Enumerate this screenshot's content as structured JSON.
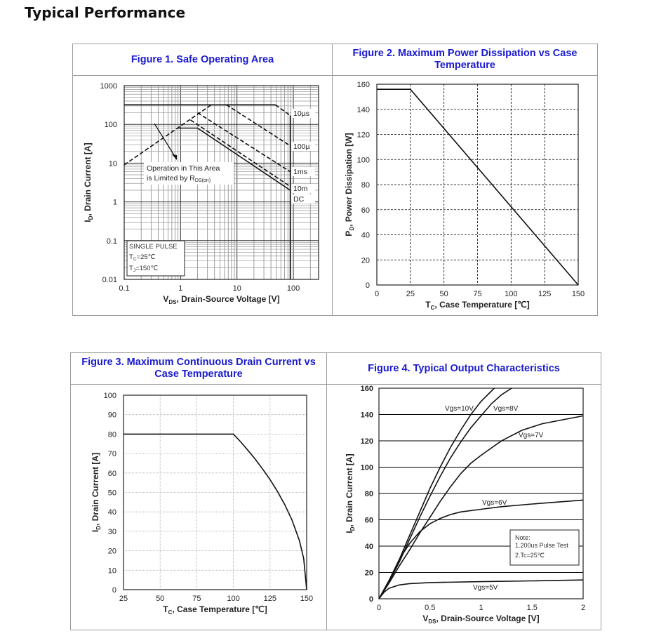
{
  "page_title": "Typical Performance",
  "chart_data": [
    {
      "type": "line",
      "title": "Figure 1. Safe Operating Area",
      "xscale": "log",
      "yscale": "log",
      "xlim": [
        0.1,
        280
      ],
      "ylim": [
        0.01,
        1000
      ],
      "grid": true,
      "xticks": [
        "0.1",
        "1",
        "10",
        "100"
      ],
      "yticks": [
        "0.01",
        "0.1",
        "1",
        "10",
        "100",
        "1000"
      ],
      "xlabel": {
        "pre": "V",
        "sub": "DS",
        "post": ", Drain-Source Voltage [V]"
      },
      "ylabel": {
        "pre": "I",
        "sub": "D",
        "post": ", Drain Current [A]"
      },
      "series": [
        {
          "style": "dashed",
          "points": [
            [
              0.1,
              9
            ],
            [
              3.5,
              320
            ]
          ]
        },
        {
          "style": "solid",
          "points": [
            [
              0.1,
              320
            ],
            [
              48,
              320
            ]
          ]
        },
        {
          "name": "10µs",
          "style": "dashed",
          "points": [
            [
              48,
              320
            ],
            [
              88,
              170
            ]
          ]
        },
        {
          "style": "solid",
          "points": [
            [
              88,
              0.01
            ],
            [
              88,
              170
            ]
          ]
        },
        {
          "name": "100µ",
          "style": "dashed",
          "points": [
            [
              6.5,
              320
            ],
            [
              88,
              28
            ]
          ]
        },
        {
          "name": "1ms",
          "style": "dashed",
          "points": [
            [
              2,
              200
            ],
            [
              88,
              6
            ]
          ]
        },
        {
          "name": "10m",
          "style": "dashed",
          "points": [
            [
              1.5,
              130
            ],
            [
              88,
              2.5
            ]
          ]
        },
        {
          "name": "DC",
          "style": "solid",
          "points": [
            [
              0.9,
              80
            ],
            [
              2,
              80
            ],
            [
              88,
              2
            ]
          ]
        }
      ],
      "annotation": {
        "line1": "Operation in This Area",
        "line2_pre": "is Limited by R",
        "line2_sub": "DS(on)"
      },
      "conditions": {
        "line1": "SINGLE PULSE",
        "tc_pre": "T",
        "tc_sub": "C",
        "tc_post": "=25℃",
        "tj_pre": "T",
        "tj_sub": "J",
        "tj_post": "=150℃"
      }
    },
    {
      "type": "line",
      "title": "Figure 2. Maximum Power Dissipation vs Case Temperature",
      "xlim": [
        0,
        150
      ],
      "ylim": [
        0,
        160
      ],
      "grid": true,
      "xticks": [
        "0",
        "25",
        "50",
        "75",
        "100",
        "125",
        "150"
      ],
      "yticks": [
        "0",
        "20",
        "40",
        "60",
        "80",
        "100",
        "120",
        "140",
        "160"
      ],
      "xlabel": {
        "pre": "T",
        "sub": "C",
        "post": ", Case Temperature [℃]"
      },
      "ylabel": {
        "pre": "P",
        "sub": "D",
        "post": ", Power Dissipation [W]"
      },
      "series": [
        {
          "style": "solid",
          "points": [
            [
              0,
              156
            ],
            [
              25,
              156
            ],
            [
              150,
              0
            ]
          ]
        }
      ]
    },
    {
      "type": "line",
      "title": "Figure 3. Maximum Continuous Drain Current vs Case Temperature",
      "xlim": [
        25,
        150
      ],
      "ylim": [
        0,
        100
      ],
      "grid": true,
      "xticks": [
        "25",
        "50",
        "75",
        "100",
        "125",
        "150"
      ],
      "yticks": [
        "0",
        "10",
        "20",
        "30",
        "40",
        "50",
        "60",
        "70",
        "80",
        "90",
        "100"
      ],
      "xlabel": {
        "pre": "T",
        "sub": "C",
        "post": ", Case Temperature [℃]"
      },
      "ylabel": {
        "pre": "I",
        "sub": "D",
        "post": ", Drain Current [A]"
      },
      "series": [
        {
          "style": "solid",
          "points": [
            [
              25,
              80
            ],
            [
              100,
              80
            ],
            [
              105,
              76
            ],
            [
              110,
              71.6
            ],
            [
              115,
              67
            ],
            [
              120,
              62
            ],
            [
              125,
              56.6
            ],
            [
              130,
              50.6
            ],
            [
              135,
              43.8
            ],
            [
              140,
              35.8
            ],
            [
              145,
              25.3
            ],
            [
              148,
              16
            ],
            [
              150,
              0
            ]
          ]
        }
      ]
    },
    {
      "type": "line",
      "title": "Figure 4. Typical Output Characteristics",
      "xlim": [
        0,
        2
      ],
      "ylim": [
        0,
        160
      ],
      "grid": true,
      "xticks": [
        "0",
        "0.5",
        "1",
        "1.5",
        "2"
      ],
      "yticks": [
        "0",
        "20",
        "40",
        "60",
        "80",
        "100",
        "120",
        "140",
        "160"
      ],
      "xlabel": {
        "pre": "V",
        "sub": "DS",
        "post": ", Drain-Source Voltage [V]"
      },
      "ylabel": {
        "pre": "I",
        "sub": "D",
        "post": ", Drain Current [A]"
      },
      "series": [
        {
          "name": "Vgs=10V",
          "style": "solid",
          "points": [
            [
              0,
              0
            ],
            [
              0.1,
              14
            ],
            [
              0.2,
              30
            ],
            [
              0.3,
              48
            ],
            [
              0.4,
              66
            ],
            [
              0.5,
              84
            ],
            [
              0.6,
              100
            ],
            [
              0.7,
              115
            ],
            [
              0.8,
              128
            ],
            [
              0.9,
              140
            ],
            [
              1.0,
              150
            ],
            [
              1.13,
              160
            ]
          ]
        },
        {
          "name": "Vgs=8V",
          "style": "solid",
          "points": [
            [
              0,
              0
            ],
            [
              0.1,
              13
            ],
            [
              0.2,
              28
            ],
            [
              0.3,
              45
            ],
            [
              0.4,
              62
            ],
            [
              0.5,
              78
            ],
            [
              0.6,
              93
            ],
            [
              0.7,
              107
            ],
            [
              0.8,
              119
            ],
            [
              0.9,
              130
            ],
            [
              1.0,
              139
            ],
            [
              1.1,
              148
            ],
            [
              1.2,
              155
            ],
            [
              1.3,
              160
            ]
          ]
        },
        {
          "name": "Vgs=7V",
          "style": "solid",
          "points": [
            [
              0,
              0
            ],
            [
              0.1,
              12
            ],
            [
              0.2,
              25
            ],
            [
              0.3,
              37
            ],
            [
              0.4,
              50
            ],
            [
              0.5,
              62
            ],
            [
              0.6,
              74
            ],
            [
              0.7,
              85
            ],
            [
              0.8,
              95
            ],
            [
              0.9,
              103
            ],
            [
              1.0,
              109
            ],
            [
              1.2,
              120
            ],
            [
              1.4,
              128
            ],
            [
              1.6,
              133
            ],
            [
              1.8,
              136
            ],
            [
              2,
              139
            ]
          ]
        },
        {
          "name": "Vgs=6V",
          "style": "solid",
          "points": [
            [
              0,
              0
            ],
            [
              0.1,
              14
            ],
            [
              0.2,
              30
            ],
            [
              0.3,
              42
            ],
            [
              0.4,
              51
            ],
            [
              0.5,
              57
            ],
            [
              0.6,
              61
            ],
            [
              0.7,
              64
            ],
            [
              0.8,
              66
            ],
            [
              1.0,
              68
            ],
            [
              1.2,
              70
            ],
            [
              1.5,
              72
            ],
            [
              2,
              75
            ]
          ]
        },
        {
          "name": "Vgs=5V",
          "style": "solid",
          "points": [
            [
              0,
              0
            ],
            [
              0.05,
              5
            ],
            [
              0.1,
              8
            ],
            [
              0.2,
              10.5
            ],
            [
              0.3,
              11.5
            ],
            [
              0.5,
              12.3
            ],
            [
              1,
              13
            ],
            [
              1.5,
              13.6
            ],
            [
              2,
              14.3
            ]
          ]
        }
      ],
      "note": {
        "line1": "Note:",
        "line2": "1.200us Pulse Test",
        "line3": "2.Tc=25℃"
      }
    }
  ]
}
